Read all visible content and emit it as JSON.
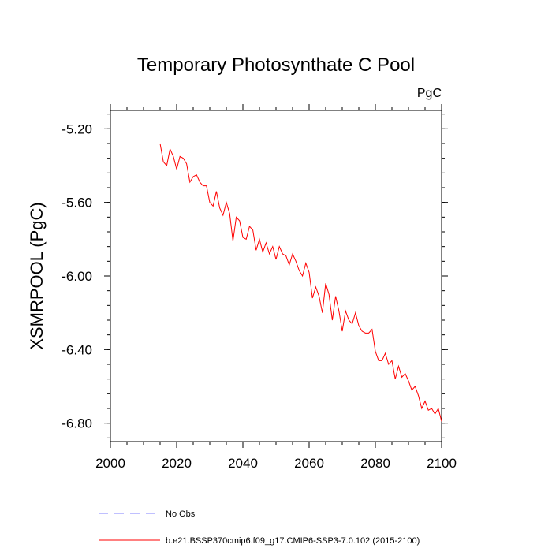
{
  "chart_data": {
    "type": "line",
    "title": "Temporary Photosynthate C Pool",
    "units_label": "PgC",
    "ylabel": "XSMRPOOL  (PgC)",
    "xlabel": "",
    "xlim": [
      2000,
      2100
    ],
    "ylim": [
      -6.9,
      -5.1
    ],
    "x_ticks": [
      2000,
      2020,
      2040,
      2060,
      2080,
      2100
    ],
    "x_tick_labels": [
      "2000",
      "2020",
      "2040",
      "2060",
      "2080",
      "2100"
    ],
    "y_ticks": [
      -5.2,
      -5.6,
      -6.0,
      -6.4,
      -6.8
    ],
    "y_tick_labels": [
      "-5.20",
      "-5.60",
      "-6.00",
      "-6.40",
      "-6.80"
    ],
    "grid": false,
    "legend_position": "bottom",
    "series": [
      {
        "name": "No Obs",
        "color": "#8080ff",
        "dash": true,
        "x": [],
        "y": []
      },
      {
        "name": "b.e21.BSSP370cmip6.f09_g17.CMIP6-SSP3-7.0.102 (2015-2100)",
        "color": "#ff0000",
        "dash": false,
        "x": [
          2015,
          2016,
          2017,
          2018,
          2019,
          2020,
          2021,
          2022,
          2023,
          2024,
          2025,
          2026,
          2027,
          2028,
          2029,
          2030,
          2031,
          2032,
          2033,
          2034,
          2035,
          2036,
          2037,
          2038,
          2039,
          2040,
          2041,
          2042,
          2043,
          2044,
          2045,
          2046,
          2047,
          2048,
          2049,
          2050,
          2051,
          2052,
          2053,
          2054,
          2055,
          2056,
          2057,
          2058,
          2059,
          2060,
          2061,
          2062,
          2063,
          2064,
          2065,
          2066,
          2067,
          2068,
          2069,
          2070,
          2071,
          2072,
          2073,
          2074,
          2075,
          2076,
          2077,
          2078,
          2079,
          2080,
          2081,
          2082,
          2083,
          2084,
          2085,
          2086,
          2087,
          2088,
          2089,
          2090,
          2091,
          2092,
          2093,
          2094,
          2095,
          2096,
          2097,
          2098,
          2099,
          2100
        ],
        "y": [
          -5.28,
          -5.38,
          -5.4,
          -5.31,
          -5.35,
          -5.42,
          -5.35,
          -5.36,
          -5.39,
          -5.49,
          -5.46,
          -5.45,
          -5.49,
          -5.51,
          -5.51,
          -5.6,
          -5.62,
          -5.54,
          -5.63,
          -5.67,
          -5.6,
          -5.66,
          -5.81,
          -5.68,
          -5.7,
          -5.79,
          -5.8,
          -5.73,
          -5.75,
          -5.86,
          -5.8,
          -5.87,
          -5.82,
          -5.88,
          -5.84,
          -5.91,
          -5.84,
          -5.88,
          -5.89,
          -5.94,
          -5.88,
          -5.92,
          -5.97,
          -6.0,
          -5.93,
          -5.98,
          -6.12,
          -6.06,
          -6.11,
          -6.2,
          -6.04,
          -6.1,
          -6.24,
          -6.11,
          -6.19,
          -6.3,
          -6.19,
          -6.24,
          -6.26,
          -6.2,
          -6.27,
          -6.3,
          -6.31,
          -6.31,
          -6.29,
          -6.41,
          -6.46,
          -6.46,
          -6.42,
          -6.48,
          -6.46,
          -6.56,
          -6.49,
          -6.55,
          -6.53,
          -6.57,
          -6.62,
          -6.6,
          -6.65,
          -6.72,
          -6.68,
          -6.73,
          -6.72,
          -6.75,
          -6.72,
          -6.79
        ]
      }
    ]
  }
}
